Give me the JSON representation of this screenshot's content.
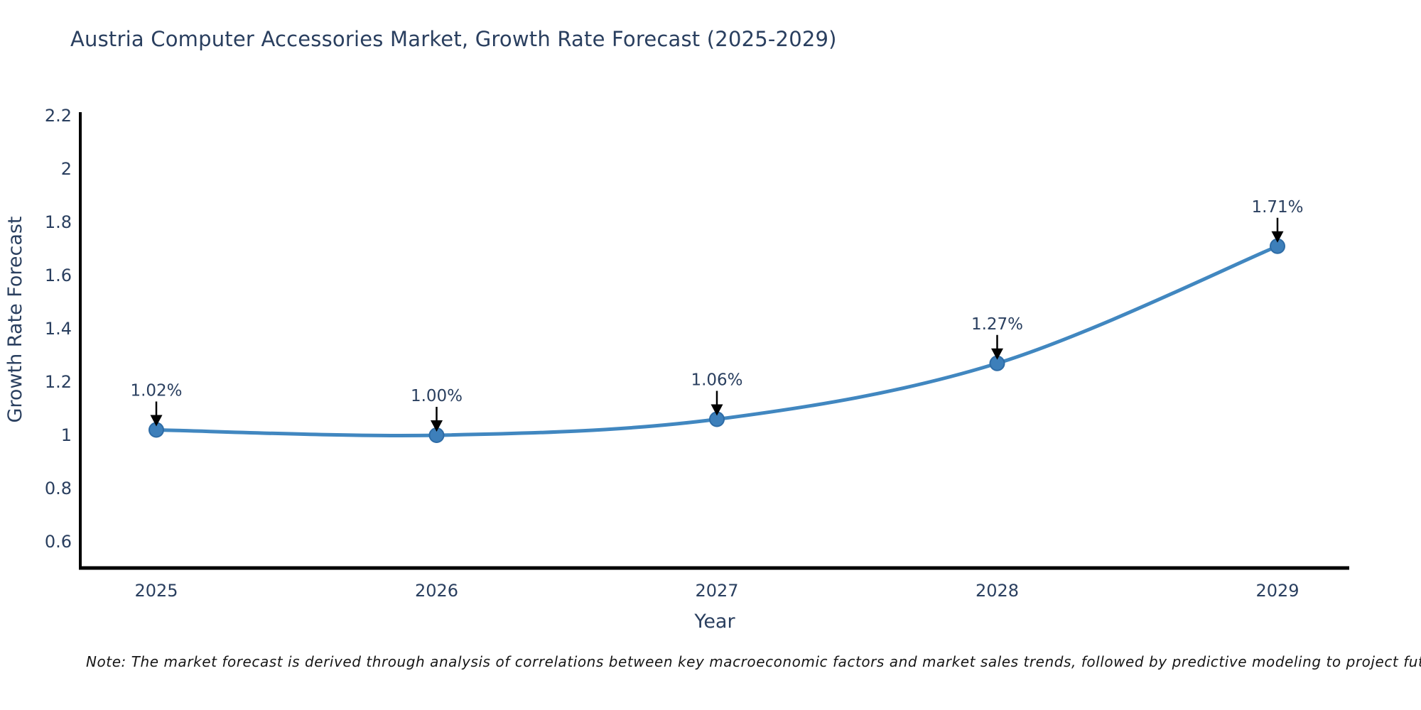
{
  "chart_data": {
    "type": "line",
    "title": "Austria Computer Accessories Market, Growth Rate Forecast (2025-2029)",
    "xlabel": "Year",
    "ylabel": "Growth Rate Forecast",
    "categories": [
      "2025",
      "2026",
      "2027",
      "2028",
      "2029"
    ],
    "values": [
      1.02,
      1.0,
      1.06,
      1.27,
      1.71
    ],
    "point_labels": [
      "1.02%",
      "1.00%",
      "1.06%",
      "1.27%",
      "1.71%"
    ],
    "yticks": [
      0.6,
      0.8,
      1,
      1.2,
      1.4,
      1.6,
      1.8,
      2,
      2.2
    ],
    "ylim": [
      0.5,
      2.25
    ],
    "grid": false,
    "legend": null,
    "note": "Note: The market forecast is derived through analysis of correlations between key macroeconomic factors and market sales trends, followed by predictive modeling to project future sales",
    "colors": {
      "line": "#4187c0",
      "marker": "#3d7fba",
      "marker_edge": "#2e6ca6",
      "text": "#2a3f5f",
      "axis": "#000000",
      "annotation_arrow": "#000000",
      "note_text": "#161616",
      "background": "#ffffff"
    }
  }
}
